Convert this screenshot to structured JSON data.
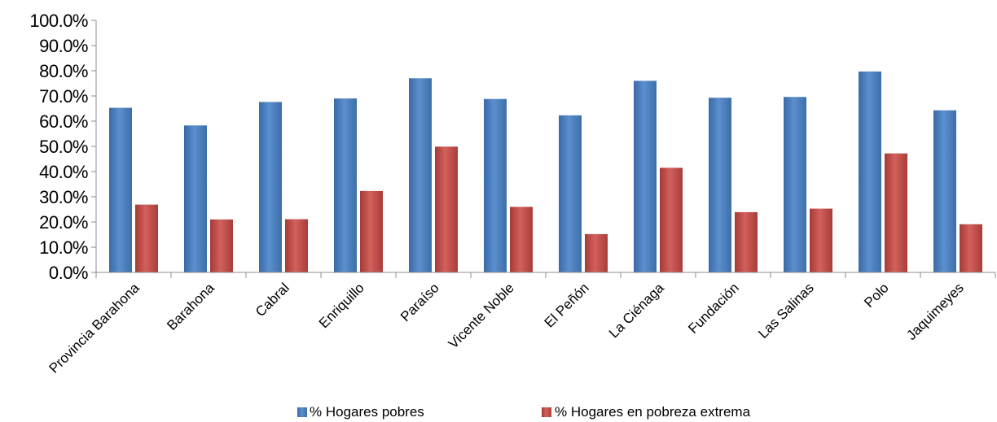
{
  "chart_data": {
    "type": "bar",
    "categories": [
      "Provincia Barahona",
      "Barahona",
      "Cabral",
      "Enriquillo",
      "Paraíso",
      "Vicente Noble",
      "El Peñón",
      "La Ciénaga",
      "Fundación",
      "Las Salinas",
      "Polo",
      "Jaquimeyes"
    ],
    "series": [
      {
        "name": "% Hogares pobres",
        "values": [
          65.3,
          58.3,
          67.6,
          69.0,
          77.0,
          68.8,
          62.3,
          76.0,
          69.3,
          69.6,
          79.7,
          64.3
        ]
      },
      {
        "name": "% Hogares en pobreza extrema",
        "values": [
          26.9,
          21.0,
          21.1,
          32.3,
          49.9,
          26.0,
          15.2,
          41.5,
          23.9,
          25.3,
          47.2,
          19.1
        ]
      }
    ],
    "yticks": [
      "0.0%",
      "10.0%",
      "20.0%",
      "30.0%",
      "40.0%",
      "50.0%",
      "60.0%",
      "70.0%",
      "80.0%",
      "90.0%",
      "100.0%"
    ],
    "ylim": [
      0,
      100
    ],
    "legend_position": "bottom",
    "colors": {
      "series1": "#4f81bd",
      "series2": "#c0504d"
    }
  }
}
